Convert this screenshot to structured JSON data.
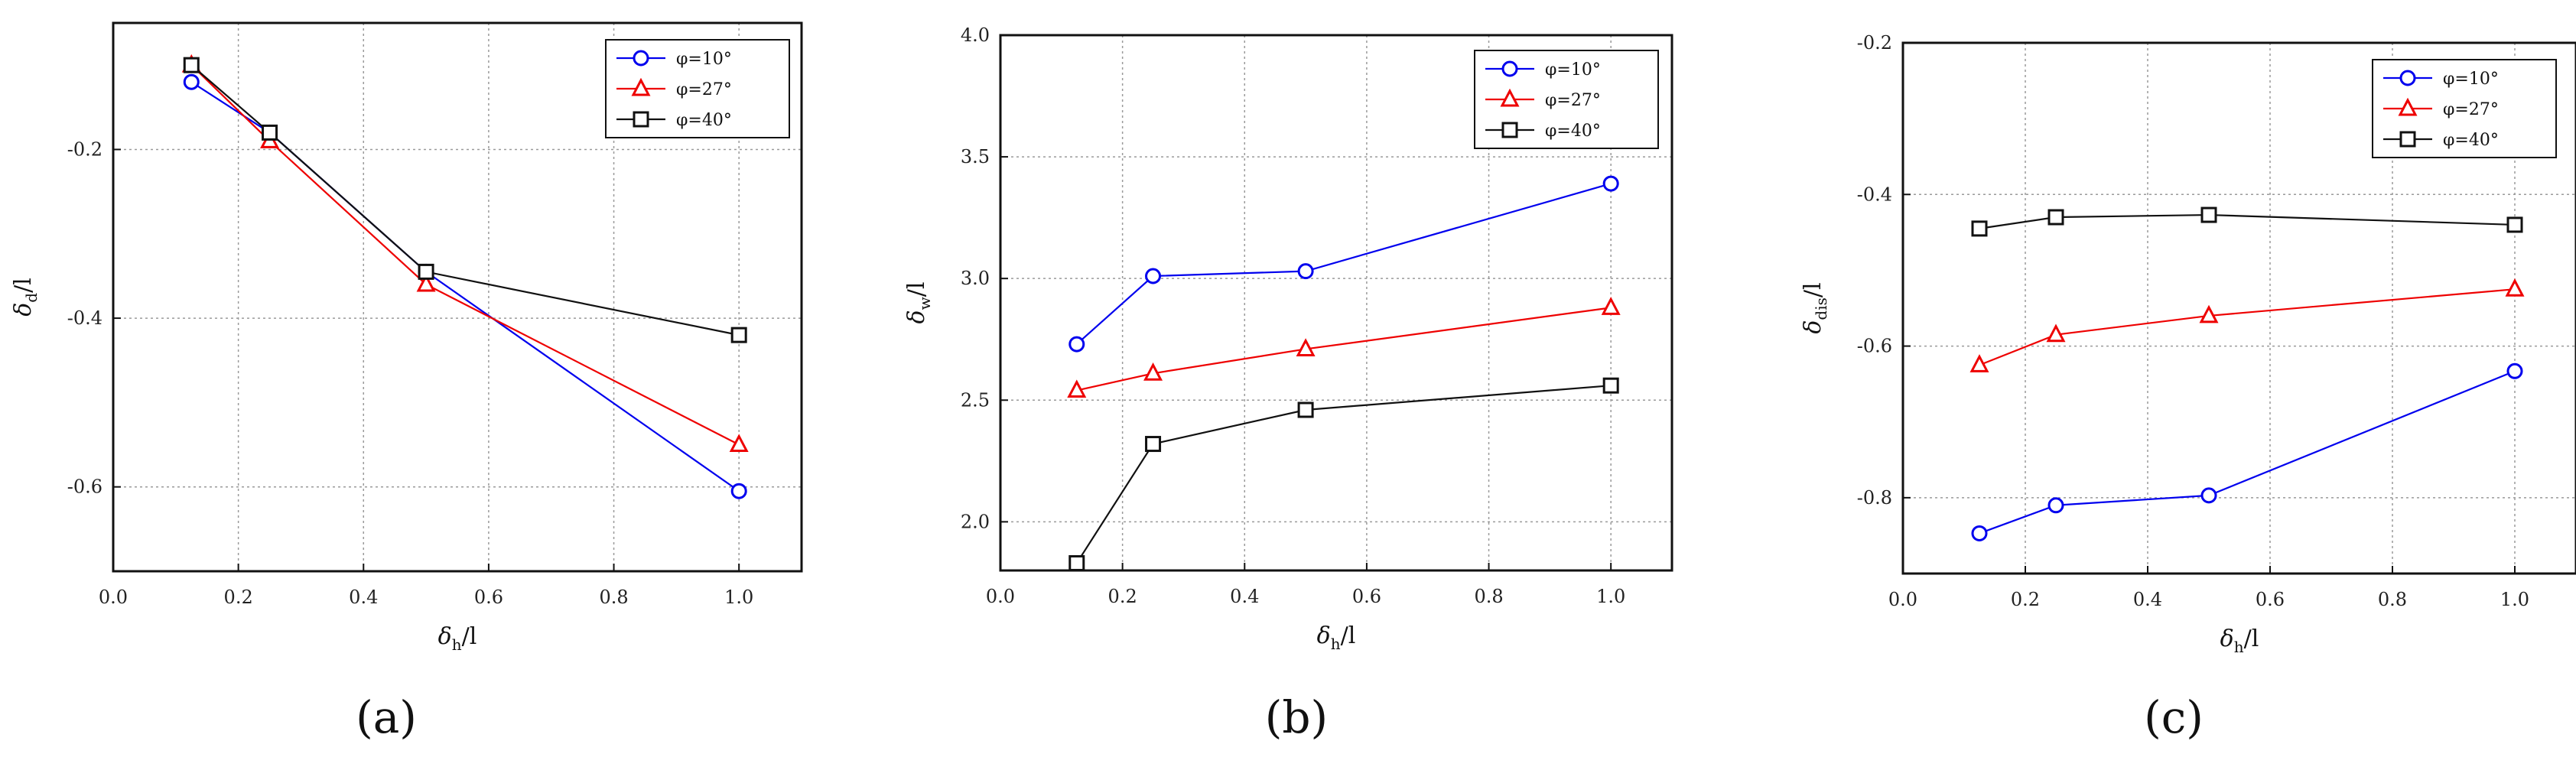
{
  "chart_data": [
    {
      "type": "line",
      "panel_label": "(a)",
      "xlabel": {
        "main": "δ",
        "sub": "h",
        "rest": "/l"
      },
      "ylabel": {
        "main": "δ",
        "sub": "d",
        "rest": "/l"
      },
      "xlim": [
        0.0,
        1.1
      ],
      "ylim": [
        -0.7,
        -0.05
      ],
      "xticks": [
        0.0,
        0.2,
        0.4,
        0.6,
        0.8,
        1.0
      ],
      "xtick_labels": [
        "0.0",
        "0.2",
        "0.4",
        "0.6",
        "0.8",
        "1.0"
      ],
      "yticks": [
        -0.6,
        -0.4,
        -0.2
      ],
      "ytick_labels": [
        "-0.6",
        "-0.4",
        "-0.2"
      ],
      "grid": true,
      "legend_position": "top-right",
      "series": [
        {
          "name": "φ=10°",
          "marker": "circle",
          "color": "#0000ee",
          "x": [
            0.125,
            0.25,
            0.5,
            1.0
          ],
          "y": [
            -0.12,
            -0.18,
            -0.345,
            -0.605
          ]
        },
        {
          "name": "φ=27°",
          "marker": "triangle",
          "color": "#ee0000",
          "x": [
            0.125,
            0.25,
            0.5,
            1.0
          ],
          "y": [
            -0.1,
            -0.19,
            -0.36,
            -0.55
          ]
        },
        {
          "name": "φ=40°",
          "marker": "square",
          "color": "#111111",
          "x": [
            0.125,
            0.25,
            0.5,
            1.0
          ],
          "y": [
            -0.1,
            -0.18,
            -0.345,
            -0.42
          ]
        }
      ]
    },
    {
      "type": "line",
      "panel_label": "(b)",
      "xlabel": {
        "main": "δ",
        "sub": "h",
        "rest": "/l"
      },
      "ylabel": {
        "main": "δ",
        "sub": "w",
        "rest": "/l"
      },
      "xlim": [
        0.0,
        1.1
      ],
      "ylim": [
        1.8,
        4.0
      ],
      "xticks": [
        0.0,
        0.2,
        0.4,
        0.6,
        0.8,
        1.0
      ],
      "xtick_labels": [
        "0.0",
        "0.2",
        "0.4",
        "0.6",
        "0.8",
        "1.0"
      ],
      "yticks": [
        2.0,
        2.5,
        3.0,
        3.5,
        4.0
      ],
      "ytick_labels": [
        "2.0",
        "2.5",
        "3.0",
        "3.5",
        "4.0"
      ],
      "grid": true,
      "legend_position": "top-right",
      "series": [
        {
          "name": "φ=10°",
          "marker": "circle",
          "color": "#0000ee",
          "x": [
            0.125,
            0.25,
            0.5,
            1.0
          ],
          "y": [
            2.73,
            3.01,
            3.03,
            3.39
          ]
        },
        {
          "name": "φ=27°",
          "marker": "triangle",
          "color": "#ee0000",
          "x": [
            0.125,
            0.25,
            0.5,
            1.0
          ],
          "y": [
            2.54,
            2.61,
            2.71,
            2.88
          ]
        },
        {
          "name": "φ=40°",
          "marker": "square",
          "color": "#111111",
          "x": [
            0.125,
            0.25,
            0.5,
            1.0
          ],
          "y": [
            1.83,
            2.32,
            2.46,
            2.56
          ]
        }
      ]
    },
    {
      "type": "line",
      "panel_label": "(c)",
      "xlabel": {
        "main": "δ",
        "sub": "h",
        "rest": "/l"
      },
      "ylabel": {
        "main": "δ",
        "sub": "dis",
        "rest": "/l"
      },
      "xlim": [
        0.0,
        1.1
      ],
      "ylim": [
        -0.9,
        -0.2
      ],
      "xticks": [
        0.0,
        0.2,
        0.4,
        0.6,
        0.8,
        1.0
      ],
      "xtick_labels": [
        "0.0",
        "0.2",
        "0.4",
        "0.6",
        "0.8",
        "1.0"
      ],
      "yticks": [
        -0.8,
        -0.6,
        -0.4,
        -0.2
      ],
      "ytick_labels": [
        "-0.8",
        "-0.6",
        "-0.4",
        "-0.2"
      ],
      "grid": true,
      "legend_position": "top-right",
      "series": [
        {
          "name": "φ=10°",
          "marker": "circle",
          "color": "#0000ee",
          "x": [
            0.125,
            0.25,
            0.5,
            1.0
          ],
          "y": [
            -0.847,
            -0.81,
            -0.797,
            -0.633
          ]
        },
        {
          "name": "φ=27°",
          "marker": "triangle",
          "color": "#ee0000",
          "x": [
            0.125,
            0.25,
            0.5,
            1.0
          ],
          "y": [
            -0.625,
            -0.585,
            -0.56,
            -0.525
          ]
        },
        {
          "name": "φ=40°",
          "marker": "square",
          "color": "#111111",
          "x": [
            0.125,
            0.25,
            0.5,
            1.0
          ],
          "y": [
            -0.445,
            -0.43,
            -0.427,
            -0.44
          ]
        }
      ]
    }
  ]
}
